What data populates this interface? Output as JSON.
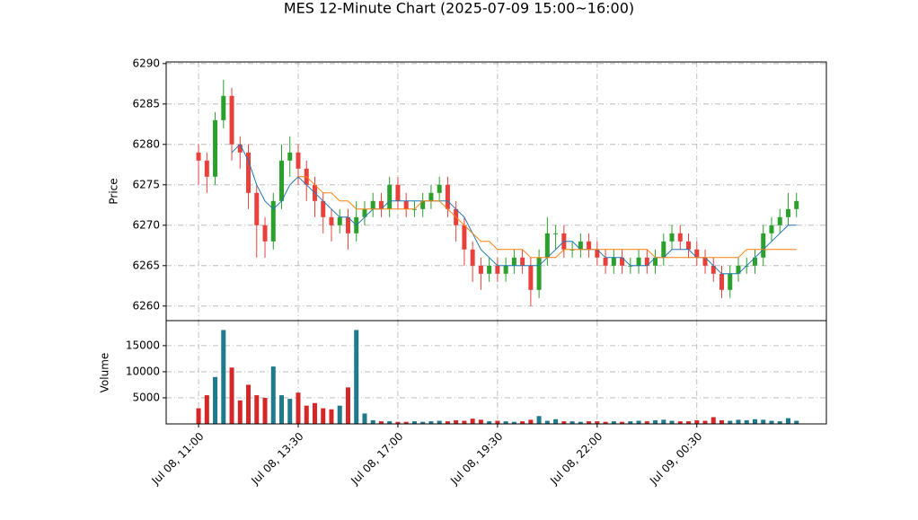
{
  "chart_data": {
    "type": "candlestick",
    "title": "MES 12-Minute Chart (2025-07-09 15:00~16:00)",
    "ylabel": "Price",
    "volume_label": "Volume",
    "xlim": [
      -3.9,
      75.6
    ],
    "xticks": [
      {
        "value": 0,
        "label": "Jul 08, 11:00"
      },
      {
        "value": 12,
        "label": "Jul 08, 13:30"
      },
      {
        "value": 24,
        "label": "Jul 08, 17:00"
      },
      {
        "value": 36,
        "label": "Jul 08, 19:30"
      },
      {
        "value": 48,
        "label": "Jul 08, 22:00"
      },
      {
        "value": 60,
        "label": "Jul 09, 00:30"
      }
    ],
    "ylim": [
      6258.2,
      6290.2
    ],
    "yticks": [
      6260,
      6265,
      6270,
      6275,
      6280,
      6285,
      6290
    ],
    "volume_lim": [
      0,
      19800
    ],
    "volume_ticks": [
      5000,
      10000,
      15000
    ],
    "grid": true,
    "up_color": "#2ca02c",
    "down_color": "#e8413c",
    "volume_up_color": "#1f7a8c",
    "volume_down_color": "#d62728",
    "open": [
      6279,
      6278,
      6276,
      6283,
      6286,
      6280,
      6279,
      6274,
      6270,
      6268,
      6273,
      6278,
      6279,
      6277,
      6275,
      6273,
      6271,
      6270,
      6271,
      6269,
      6271,
      6272,
      6273,
      6272,
      6275,
      6273,
      6272,
      6272,
      6273,
      6274,
      6275,
      6272,
      6270,
      6267,
      6265,
      6264,
      6265,
      6264,
      6265,
      6266,
      6265,
      6262,
      6266,
      6269,
      6269,
      6267,
      6267,
      6268,
      6267,
      6266,
      6265,
      6266,
      6265,
      6265,
      6266,
      6265,
      6266,
      6268,
      6269,
      6268,
      6267,
      6266,
      6265,
      6264,
      6262,
      6264,
      6265,
      6265,
      6266,
      6269,
      6270,
      6271,
      6272
    ],
    "high": [
      6280,
      6279,
      6284,
      6288,
      6287,
      6281,
      6280,
      6275,
      6271,
      6274,
      6280,
      6281,
      6280,
      6278,
      6276,
      6274,
      6272,
      6272,
      6272,
      6273,
      6273,
      6274,
      6274,
      6276,
      6276,
      6274,
      6273,
      6274,
      6275,
      6276,
      6276,
      6273,
      6271,
      6268,
      6266,
      6266,
      6266,
      6266,
      6267,
      6267,
      6266,
      6267,
      6271,
      6270,
      6270,
      6268,
      6269,
      6269,
      6268,
      6267,
      6267,
      6267,
      6266,
      6267,
      6267,
      6267,
      6269,
      6270,
      6270,
      6269,
      6268,
      6267,
      6266,
      6265,
      6265,
      6266,
      6266,
      6267,
      6270,
      6271,
      6272,
      6274,
      6274
    ],
    "low": [
      6275,
      6274,
      6275,
      6282,
      6278,
      6277,
      6272,
      6266,
      6266,
      6267,
      6272,
      6276,
      6275,
      6273,
      6271,
      6269,
      6268,
      6269,
      6267,
      6268,
      6270,
      6271,
      6271,
      6271,
      6272,
      6271,
      6271,
      6271,
      6272,
      6273,
      6271,
      6268,
      6265,
      6263,
      6262,
      6263,
      6263,
      6263,
      6264,
      6264,
      6260,
      6261,
      6265,
      6267,
      6266,
      6266,
      6266,
      6266,
      6265,
      6264,
      6264,
      6264,
      6264,
      6264,
      6264,
      6264,
      6265,
      6267,
      6267,
      6266,
      6265,
      6264,
      6263,
      6261,
      6261,
      6263,
      6264,
      6264,
      6265,
      6268,
      6269,
      6270,
      6271
    ],
    "close": [
      6278,
      6276,
      6283,
      6286,
      6280,
      6279,
      6274,
      6270,
      6268,
      6273,
      6278,
      6279,
      6277,
      6275,
      6273,
      6271,
      6270,
      6271,
      6269,
      6271,
      6272,
      6273,
      6272,
      6275,
      6273,
      6272,
      6272,
      6273,
      6274,
      6275,
      6272,
      6270,
      6267,
      6265,
      6264,
      6265,
      6264,
      6265,
      6266,
      6265,
      6262,
      6266,
      6269,
      6269,
      6267,
      6267,
      6268,
      6267,
      6266,
      6265,
      6266,
      6265,
      6265,
      6266,
      6265,
      6266,
      6268,
      6269,
      6268,
      6267,
      6266,
      6265,
      6264,
      6262,
      6264,
      6265,
      6265,
      6266,
      6269,
      6270,
      6271,
      6272,
      6273
    ],
    "volume": [
      3000,
      5500,
      9000,
      18000,
      10800,
      4500,
      7500,
      5500,
      5000,
      11000,
      5500,
      4800,
      6000,
      3500,
      4000,
      3000,
      2800,
      3500,
      7000,
      18000,
      2000,
      700,
      500,
      500,
      400,
      400,
      500,
      400,
      500,
      600,
      500,
      700,
      600,
      1000,
      800,
      500,
      600,
      500,
      400,
      500,
      800,
      1500,
      600,
      900,
      500,
      500,
      400,
      500,
      500,
      400,
      500,
      400,
      500,
      600,
      500,
      700,
      800,
      600,
      500,
      500,
      700,
      600,
      1300,
      700,
      600,
      800,
      700,
      900,
      800,
      600,
      500,
      1100,
      600
    ],
    "lines": [
      {
        "color": "#1f77b4",
        "values": [
          null,
          null,
          null,
          null,
          6279,
          6280,
          6278,
          6275,
          6273,
          6272,
          6273,
          6275,
          6276,
          6275,
          6274,
          6273,
          6272,
          6271,
          6271,
          6270,
          6271,
          6272,
          6272,
          6273,
          6273,
          6273,
          6273,
          6273,
          6273,
          6273,
          6273,
          6272,
          6271,
          6269,
          6267,
          6266,
          6265,
          6265,
          6265,
          6265,
          6265,
          6265,
          6266,
          6267,
          6268,
          6268,
          6267,
          6267,
          6267,
          6266,
          6266,
          6266,
          6265,
          6265,
          6265,
          6266,
          6266,
          6267,
          6267,
          6267,
          6266,
          6266,
          6265,
          6264,
          6264,
          6264,
          6265,
          6266,
          6267,
          6268,
          6269,
          6270,
          6270
        ]
      },
      {
        "color": "#ff7f0e",
        "values": [
          null,
          null,
          null,
          null,
          null,
          null,
          null,
          null,
          null,
          null,
          null,
          null,
          6276,
          6276,
          6275,
          6274,
          6274,
          6273,
          6273,
          6272,
          6272,
          6272,
          6272,
          6272,
          6272,
          6272,
          6272,
          6273,
          6273,
          6273,
          6272,
          6271,
          6270,
          6269,
          6268,
          6268,
          6267,
          6267,
          6267,
          6267,
          6266,
          6266,
          6266,
          6266,
          6267,
          6267,
          6267,
          6267,
          6267,
          6267,
          6267,
          6267,
          6267,
          6267,
          6267,
          6266,
          6266,
          6266,
          6266,
          6266,
          6266,
          6266,
          6266,
          6266,
          6266,
          6266,
          6267,
          6267,
          6267,
          6267,
          6267,
          6267,
          6267
        ]
      }
    ]
  }
}
